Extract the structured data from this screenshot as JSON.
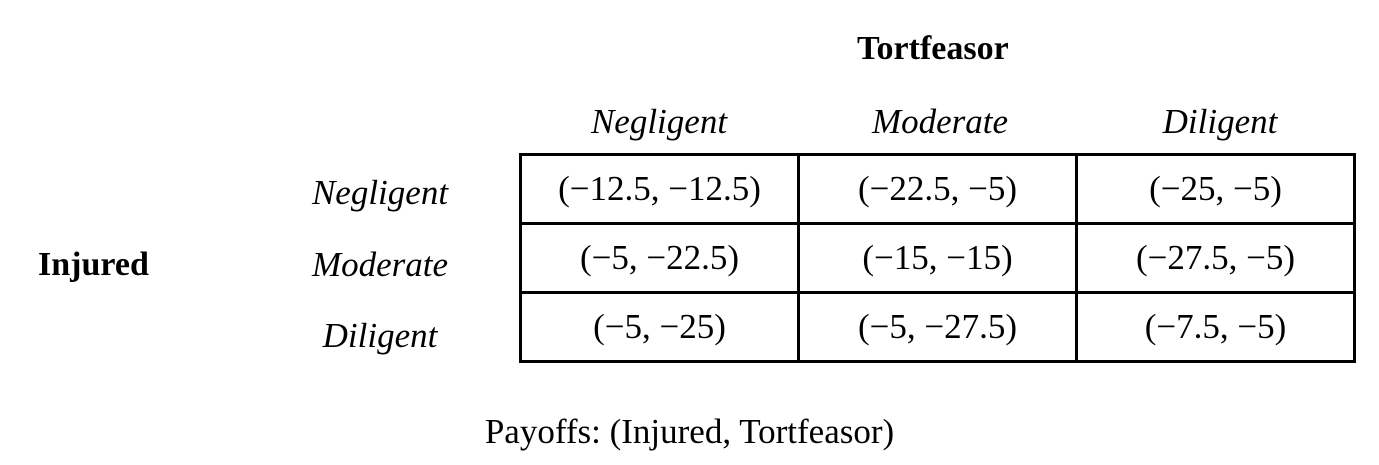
{
  "column_player": "Tortfeasor",
  "row_player": "Injured",
  "column_strategies": [
    "Negligent",
    "Moderate",
    "Diligent"
  ],
  "row_strategies": [
    "Negligent",
    "Moderate",
    "Diligent"
  ],
  "payoffs": [
    [
      "(−12.5, −12.5)",
      "(−22.5, −5)",
      "(−25, −5)"
    ],
    [
      "(−5, −22.5)",
      "(−15, −15)",
      "(−27.5, −5)"
    ],
    [
      "(−5, −25)",
      "(−5, −27.5)",
      "(−7.5, −5)"
    ]
  ],
  "caption": "Payoffs: (Injured, Tortfeasor)"
}
